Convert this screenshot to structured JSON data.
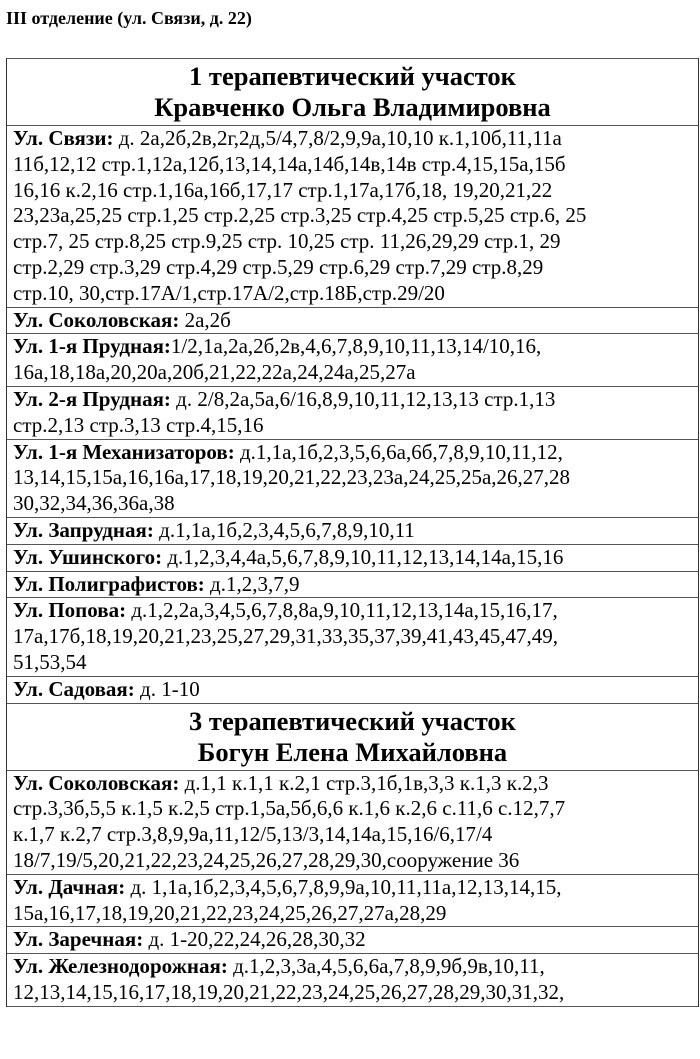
{
  "department": "III отделение (ул. Связи, д. 22)",
  "sections": [
    {
      "title": "1 терапевтический участок",
      "doctor": "Кравченко Ольга Владимировна",
      "rows": [
        {
          "street": "Ул. Связи:",
          "lines": [
            " д. 2а,2б,2в,2г,2д,5/4,7,8/2,9,9а,10,10 к.1,10б,11,11а",
            "11б,12,12 стр.1,12а,12б,13,14,14а,14б,14в,14в стр.4,15,15а,15б",
            "16,16 к.2,16 стр.1,16а,16б,17,17 стр.1,17а,17б,18, 19,20,21,22",
            "23,23а,25,25 стр.1,25 стр.2,25 стр.3,25 стр.4,25 стр.5,25 стр.6, 25",
            "стр.7, 25 стр.8,25 стр.9,25 стр. 10,25 стр. 11,26,29,29 стр.1, 29",
            "стр.2,29 стр.3,29 стр.4,29 стр.5,29 стр.6,29 стр.7,29 стр.8,29",
            "стр.10, 30,стр.17А/1,стр.17А/2,стр.18Б,стр.29/20"
          ]
        },
        {
          "street": "Ул. Соколовская:",
          "lines": [
            " 2а,2б"
          ]
        },
        {
          "street": "Ул. 1-я Прудная:",
          "lines": [
            "1/2,1а,2а,2б,2в,4,6,7,8,9,10,11,13,14/10,16,",
            "16а,18,18а,20,20а,20б,21,22,22а,24,24а,25,27а"
          ]
        },
        {
          "street": "Ул. 2-я Прудная:",
          "lines": [
            " д. 2/8,2а,5а,6/16,8,9,10,11,12,13,13 стр.1,13",
            "стр.2,13 стр.3,13 стр.4,15,16"
          ]
        },
        {
          "street": "Ул. 1-я Механизаторов:",
          "lines": [
            " д.1,1а,1б,2,3,5,6,6а,6б,7,8,9,10,11,12,",
            "13,14,15,15а,16,16а,17,18,19,20,21,22,23,23а,24,25,25а,26,27,28",
            "30,32,34,36,36а,38"
          ]
        },
        {
          "street": "Ул. Запрудная:",
          "lines": [
            " д.1,1а,1б,2,3,4,5,6,7,8,9,10,11"
          ]
        },
        {
          "street": "Ул. Ушинского:",
          "lines": [
            " д.1,2,3,4,4а,5,6,7,8,9,10,11,12,13,14,14а,15,16"
          ]
        },
        {
          "street": "Ул. Полиграфистов:",
          "lines": [
            " д.1,2,3,7,9"
          ]
        },
        {
          "street": "Ул. Попова:",
          "lines": [
            " д.1,2,2а,3,4,5,6,7,8,8а,9,10,11,12,13,14а,15,16,17,",
            "17а,17б,18,19,20,21,23,25,27,29,31,33,35,37,39,41,43,45,47,49,",
            "51,53,54"
          ]
        },
        {
          "street": "Ул. Садовая:",
          "lines": [
            " д. 1-10"
          ]
        }
      ]
    },
    {
      "title": "3 терапевтический участок",
      "doctor": "Богун Елена Михайловна",
      "rows": [
        {
          "street": "Ул. Соколовская:",
          "lines": [
            " д.1,1 к.1,1 к.2,1 стр.3,1б,1в,3,3 к.1,3 к.2,3",
            "стр.3,3б,5,5 к.1,5 к.2,5 стр.1,5а,5б,6,6 к.1,6 к.2,6 с.11,6 с.12,7,7",
            "к.1,7 к.2,7 стр.3,8,9,9а,11,12/5,13/3,14,14а,15,16/6,17/4",
            "18/7,19/5,20,21,22,23,24,25,26,27,28,29,30,сооружение 36"
          ]
        },
        {
          "street": "Ул. Дачная:",
          "lines": [
            " д. 1,1а,1б,2,3,4,5,6,7,8,9,9а,10,11,11а,12,13,14,15,",
            "15а,16,17,18,19,20,21,22,23,24,25,26,27,27а,28,29"
          ]
        },
        {
          "street": "Ул. Заречная:",
          "lines": [
            " д. 1-20,22,24,26,28,30,32"
          ]
        },
        {
          "street": "Ул. Железнодорожная:",
          "lines": [
            " д.1,2,3,3а,4,5,6,6а,7,8,9,9б,9в,10,11,",
            "12,13,14,15,16,17,18,19,20,21,22,23,24,25,26,27,28,29,30,31,32,"
          ]
        }
      ]
    }
  ]
}
